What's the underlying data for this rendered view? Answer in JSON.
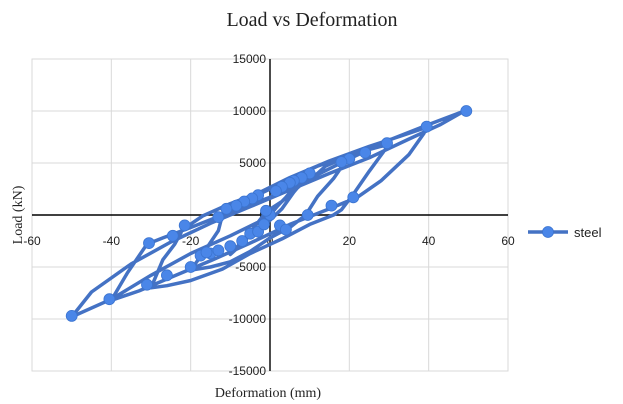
{
  "chart_data": {
    "type": "scatter",
    "title": "Load vs Deformation",
    "xlabel": "Deformation (mm)",
    "ylabel": "Load (kN)",
    "xlim": [
      -60,
      60
    ],
    "ylim": [
      -15000,
      15000
    ],
    "x_ticks": [
      "-60",
      "-40",
      "-20",
      "0",
      "20",
      "40",
      "60"
    ],
    "y_ticks": [
      "15000",
      "10000",
      "5000",
      "0",
      "-5000",
      "-10000",
      "-15000"
    ],
    "grid": true,
    "legend_position": "right",
    "series": [
      {
        "name": "steel",
        "color": "#4472c4",
        "points": [
          [
            0,
            0
          ],
          [
            2,
            900
          ],
          [
            4,
            1700
          ],
          [
            6,
            2600
          ],
          [
            8,
            3400
          ],
          [
            10,
            4000
          ],
          [
            6,
            2200
          ],
          [
            3,
            600
          ],
          [
            0,
            -500
          ],
          [
            -3,
            -1400
          ],
          [
            -6,
            -2300
          ],
          [
            -8,
            -3100
          ],
          [
            -10,
            -3800
          ],
          [
            -7,
            -2500
          ],
          [
            -4,
            -1200
          ],
          [
            -1,
            300
          ],
          [
            3,
            1300
          ],
          [
            6,
            2300
          ],
          [
            9,
            3300
          ],
          [
            12,
            4000
          ],
          [
            14,
            4700
          ],
          [
            17,
            5200
          ],
          [
            20,
            5700
          ],
          [
            16,
            3500
          ],
          [
            12,
            1800
          ],
          [
            9,
            0
          ],
          [
            5,
            -1200
          ],
          [
            2,
            -1800
          ],
          [
            0,
            -2200
          ],
          [
            -5,
            -3500
          ],
          [
            -10,
            -4500
          ],
          [
            -15,
            -5000
          ],
          [
            -20,
            -5300
          ],
          [
            -16,
            -3200
          ],
          [
            -13,
            -1500
          ],
          [
            -12,
            0
          ],
          [
            -9,
            600
          ],
          [
            -5,
            1600
          ],
          [
            0,
            2500
          ],
          [
            6,
            3600
          ],
          [
            12,
            4700
          ],
          [
            18,
            5500
          ],
          [
            24,
            6200
          ],
          [
            30,
            6800
          ],
          [
            25,
            4200
          ],
          [
            21,
            2000
          ],
          [
            18,
            500
          ],
          [
            16,
            0
          ],
          [
            10,
            -900
          ],
          [
            3,
            -2300
          ],
          [
            -5,
            -3700
          ],
          [
            -12,
            -5200
          ],
          [
            -20,
            -6300
          ],
          [
            -26,
            -6800
          ],
          [
            -30,
            -7000
          ],
          [
            -27,
            -4300
          ],
          [
            -24,
            -2800
          ],
          [
            -22,
            -1400
          ],
          [
            -17,
            -100
          ],
          [
            -10,
            1100
          ],
          [
            -3,
            2100
          ],
          [
            5,
            3600
          ],
          [
            15,
            5200
          ],
          [
            25,
            6600
          ],
          [
            33,
            7600
          ],
          [
            40,
            8500
          ],
          [
            35,
            5800
          ],
          [
            28,
            3300
          ],
          [
            22,
            1700
          ],
          [
            15,
            600
          ],
          [
            5,
            -900
          ],
          [
            -5,
            -2700
          ],
          [
            -15,
            -4400
          ],
          [
            -25,
            -6000
          ],
          [
            -33,
            -7300
          ],
          [
            -40,
            -8200
          ],
          [
            -36,
            -5600
          ],
          [
            -31,
            -2800
          ],
          [
            -27,
            -2200
          ],
          [
            -20,
            -1200
          ],
          [
            -10,
            300
          ],
          [
            0,
            1700
          ],
          [
            10,
            3500
          ],
          [
            20,
            5400
          ],
          [
            30,
            7200
          ],
          [
            40,
            8700
          ],
          [
            49,
            10000
          ],
          [
            43,
            8700
          ],
          [
            35,
            7300
          ],
          [
            25,
            5500
          ],
          [
            15,
            4000
          ],
          [
            5,
            2400
          ],
          [
            -5,
            800
          ],
          [
            -15,
            -800
          ],
          [
            -25,
            -2600
          ],
          [
            -35,
            -4700
          ],
          [
            -45,
            -7400
          ],
          [
            -50,
            -9800
          ],
          [
            -40,
            -8100
          ],
          [
            -30,
            -5800
          ],
          [
            -20,
            -3700
          ],
          [
            -10,
            -2000
          ],
          [
            -2,
            -500
          ],
          [
            0,
            0
          ]
        ],
        "marked_points": [
          [
            49.5,
            10000
          ],
          [
            39.5,
            8500
          ],
          [
            29.5,
            6900
          ],
          [
            24,
            6000
          ],
          [
            20,
            5400
          ],
          [
            18,
            5100
          ],
          [
            10,
            4000
          ],
          [
            8,
            3600
          ],
          [
            6,
            3300
          ],
          [
            5,
            3100
          ],
          [
            3,
            2700
          ],
          [
            1.5,
            2300
          ],
          [
            -3,
            1900
          ],
          [
            -4.5,
            1600
          ],
          [
            -6.5,
            1300
          ],
          [
            -8.5,
            900
          ],
          [
            -11,
            600
          ],
          [
            -13,
            -200
          ],
          [
            -21.5,
            -1000
          ],
          [
            -24.5,
            -2000
          ],
          [
            -30.5,
            -2700
          ],
          [
            -26,
            -5800
          ],
          [
            -31,
            -6700
          ],
          [
            -20,
            -5000
          ],
          [
            -40.5,
            -8100
          ],
          [
            -50,
            -9700
          ],
          [
            -15,
            -3700
          ],
          [
            -13,
            -3400
          ],
          [
            -10,
            -3000
          ],
          [
            -7,
            -2500
          ],
          [
            -5,
            -1800
          ],
          [
            -3,
            -1600
          ],
          [
            -1.5,
            -900
          ],
          [
            0,
            0
          ],
          [
            2.5,
            -1000
          ],
          [
            4,
            -1400
          ],
          [
            9.5,
            0
          ],
          [
            15.5,
            900
          ],
          [
            21,
            1700
          ],
          [
            -17.5,
            -3900
          ],
          [
            -16,
            -3600
          ],
          [
            -1,
            400
          ]
        ]
      }
    ]
  }
}
